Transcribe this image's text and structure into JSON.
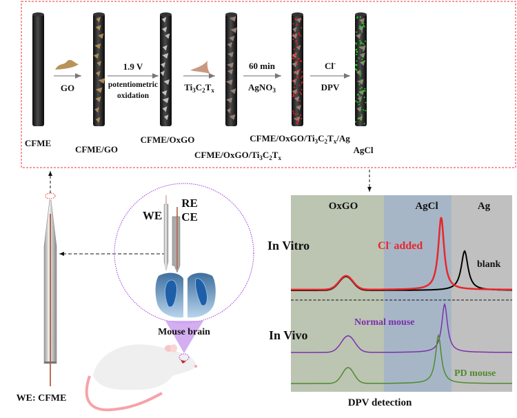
{
  "steps": {
    "rods": [
      "CFME",
      "CFME/GO",
      "CFME/OxGO",
      "CFME/OxGO/Ti3C2Tx",
      "CFME/OxGO/Ti3C2Tx/Ag",
      "AgCl"
    ],
    "arrow1": {
      "below": "GO"
    },
    "arrow2": {
      "above": "1.9 V",
      "below1": "potentiometric",
      "below2": "oxidation"
    },
    "arrow3": {
      "below_main": "Ti",
      "sub1": "3",
      "mid": "C",
      "sub2": "2",
      "end": "T",
      "sub3": "x"
    },
    "arrow4": {
      "above": "60 min",
      "below_main": "AgNO",
      "sub": "3"
    },
    "arrow5": {
      "above": "Cl",
      "sup": "-",
      "below": "DPV"
    },
    "label4": {
      "a": "CFME/OxGO/Ti",
      "s1": "3",
      "b": "C",
      "s2": "2",
      "c": "T",
      "s3": "x"
    },
    "label5": {
      "a": "CFME/OxGO/Ti",
      "s1": "3",
      "b": "C",
      "s2": "2",
      "c": "T",
      "s3": "x",
      "d": "/Ag"
    }
  },
  "setup": {
    "we": "WE",
    "re": "RE",
    "ce": "CE",
    "brain": "Mouse brain",
    "electrode": "WE: CFME"
  },
  "dpv": {
    "regions": [
      {
        "label": "OxGO",
        "color": "#bcc4b2"
      },
      {
        "label": "AgCl",
        "color": "#a6b6c6"
      },
      {
        "label": "Ag",
        "color": "#c0c0c0"
      }
    ],
    "in_vitro": "In Vitro",
    "in_vivo": "In Vivo",
    "cl_added": {
      "main": "Cl",
      "sup": "-",
      "rest": " added",
      "color": "#e8262b"
    },
    "blank": {
      "label": "blank",
      "color": "#000000"
    },
    "normal": {
      "label": "Normal mouse",
      "color": "#7a2fae"
    },
    "pd": {
      "label": "PD mouse",
      "color": "#4d8a2a"
    },
    "footer": "DPV detection"
  }
}
